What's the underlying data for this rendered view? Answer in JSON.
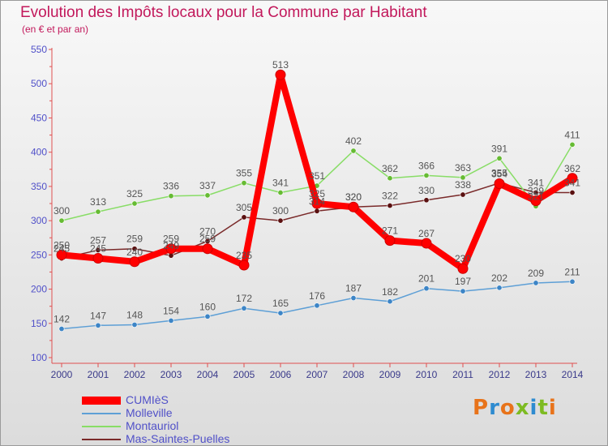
{
  "title": "Evolution des Impôts locaux pour la Commune par Habitant",
  "subtitle": "(en € et par an)",
  "logo_text": "Proxiti",
  "colors": {
    "title": "#c2185b",
    "axis_labels": "#5050c8",
    "legend_text": "#5050c8",
    "data_labels": "#555555",
    "logo_letters": [
      "#e8731a",
      "#2e8bd0",
      "#e8731a",
      "#7dbb22",
      "#2e8bd0",
      "#7dbb22",
      "#e8731a"
    ]
  },
  "chart_data": {
    "type": "line",
    "title": "Evolution des Impôts locaux pour la Commune par Habitant",
    "subtitle": "(en € et par an)",
    "x": [
      "2000",
      "2001",
      "2002",
      "2003",
      "2004",
      "2005",
      "2006",
      "2007",
      "2008",
      "2009",
      "2010",
      "2011",
      "2012",
      "2013",
      "2014"
    ],
    "ylim": [
      100,
      550
    ],
    "yticks": [
      100,
      150,
      200,
      250,
      300,
      350,
      400,
      450,
      500,
      550
    ],
    "grid": false,
    "legend_position": "bottom-left",
    "series": [
      {
        "name": "Mas-Saintes-Puelles",
        "color": "#7a2a2a",
        "marker": "#5a1010",
        "width": 1.5,
        "values": [
          245,
          257,
          259,
          249,
          270,
          305,
          300,
          314,
          320,
          322,
          330,
          338,
          355,
          341,
          341
        ]
      },
      {
        "name": "Montauriol",
        "color": "#88dd66",
        "marker": "#66bb33",
        "width": 1.5,
        "values": [
          300,
          313,
          325,
          336,
          337,
          355,
          341,
          351,
          402,
          362,
          366,
          363,
          391,
          321,
          411
        ]
      },
      {
        "name": "Molleville",
        "color": "#5d9fd6",
        "marker": "#3d85c6",
        "width": 1.5,
        "values": [
          142,
          147,
          148,
          154,
          160,
          172,
          165,
          176,
          187,
          182,
          201,
          197,
          202,
          209,
          211
        ]
      },
      {
        "name": "CUMIèS",
        "color": "#ff0000",
        "marker": "#ff0000",
        "width": 8,
        "values": [
          250,
          245,
          240,
          259,
          259,
          235,
          513,
          325,
          320,
          271,
          267,
          230,
          354,
          329,
          362
        ]
      }
    ]
  }
}
